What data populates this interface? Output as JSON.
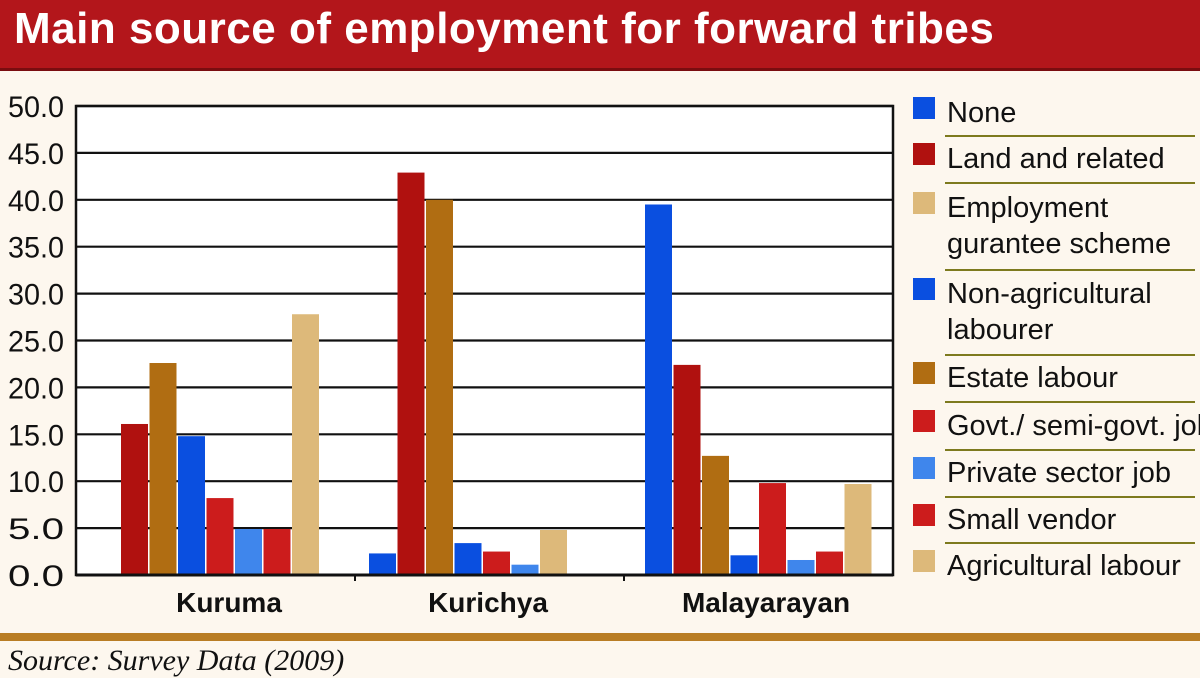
{
  "header": {
    "title": "Main source of employment for forward tribes"
  },
  "footer": {
    "source": "Source: Survey Data (2009)"
  },
  "chart_data": {
    "type": "bar",
    "title": "Main source of employment for forward tribes",
    "xlabel": "",
    "ylabel": "",
    "ylim": [
      0,
      50
    ],
    "yticks": [
      "0.0",
      "5.0",
      "10.0",
      "15.0",
      "20.0",
      "25.0",
      "30.0",
      "35.0",
      "40.0",
      "45.0",
      "50.0"
    ],
    "grid": true,
    "legend_position": "right",
    "categories": [
      "Kuruma",
      "Kurichya",
      "Malayarayan"
    ],
    "series": [
      {
        "name": "None",
        "legend_lines": [
          "None"
        ],
        "color": "#0a4fe0",
        "values": [
          0,
          2.3,
          39.5
        ]
      },
      {
        "name": "Land and related",
        "legend_lines": [
          "Land and related"
        ],
        "color": "#b0110f",
        "values": [
          16.1,
          42.9,
          22.4
        ]
      },
      {
        "name": "Employment gurantee scheme",
        "legend_lines": [
          "Employment",
          "gurantee scheme"
        ],
        "color": "#ddb97a",
        "values": [
          0,
          0,
          0
        ]
      },
      {
        "name": "Non-agricultural labourer",
        "legend_lines": [
          "Non-agricultural",
          "labourer"
        ],
        "color": "#0a4fe0",
        "values": [
          14.8,
          3.4,
          2.1
        ]
      },
      {
        "name": "Estate labour",
        "legend_lines": [
          "Estate labour"
        ],
        "color": "#b06d12",
        "values": [
          22.6,
          40.0,
          12.7
        ]
      },
      {
        "name": "Govt./ semi-govt. job",
        "legend_lines": [
          "Govt./ semi-govt. job"
        ],
        "color": "#cc1c1c",
        "values": [
          8.2,
          2.5,
          9.8
        ]
      },
      {
        "name": "Private sector job",
        "legend_lines": [
          "Private sector job"
        ],
        "color": "#3f86ec",
        "values": [
          4.9,
          1.1,
          1.6
        ]
      },
      {
        "name": "Small vendor",
        "legend_lines": [
          "Small vendor"
        ],
        "color": "#cc1c1c",
        "values": [
          4.9,
          0,
          2.5
        ]
      },
      {
        "name": "Agricultural labour",
        "legend_lines": [
          "Agricultural labour"
        ],
        "color": "#ddb97a",
        "values": [
          27.8,
          4.8,
          9.7
        ]
      }
    ],
    "bar_order": [
      [
        "Land and related",
        "Estate labour",
        "Non-agricultural labourer",
        "Govt./ semi-govt. job",
        "Private sector job",
        "Small vendor",
        "Agricultural labour"
      ],
      [
        "None",
        "Land and related",
        "Estate labour",
        "Non-agricultural labourer",
        "Govt./ semi-govt. job",
        "Private sector job",
        "Agricultural labour"
      ],
      [
        "None",
        "Land and related",
        "Estate labour",
        "Non-agricultural labourer",
        "Govt./ semi-govt. job",
        "Private sector job",
        "Small vendor",
        "Agricultural labour"
      ]
    ]
  }
}
